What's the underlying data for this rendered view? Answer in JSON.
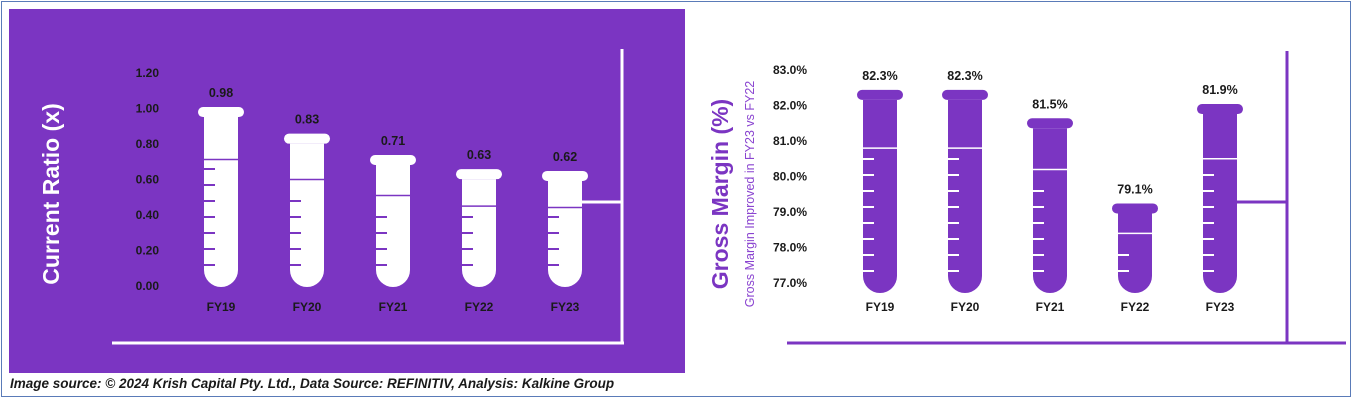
{
  "colors": {
    "purple": "#7b35c2",
    "white": "#ffffff",
    "text_dark": "#1a1a1a",
    "label_purple": "#8a44d0"
  },
  "chart_data": [
    {
      "type": "bar",
      "title": "",
      "ylabel": "Current Ratio (x)",
      "xlabel": "",
      "categories": [
        "FY19",
        "FY20",
        "FY21",
        "FY22",
        "FY23"
      ],
      "values": [
        0.98,
        0.83,
        0.71,
        0.63,
        0.62
      ],
      "value_labels": [
        "0.98",
        "0.83",
        "0.71",
        "0.63",
        "0.62"
      ],
      "ylim": [
        0,
        1.2
      ],
      "yticks": [
        "0.00",
        "0.20",
        "0.40",
        "0.60",
        "0.80",
        "1.00",
        "1.20"
      ]
    },
    {
      "type": "bar",
      "title": "",
      "ylabel": "Gross Margin (%)",
      "subtitle": "Gross Margin Improved in FY23 vs FY22",
      "xlabel": "",
      "categories": [
        "FY19",
        "FY20",
        "FY21",
        "FY22",
        "FY23"
      ],
      "values": [
        82.3,
        82.3,
        81.5,
        79.1,
        81.9
      ],
      "value_labels": [
        "82.3%",
        "82.3%",
        "81.5%",
        "79.1%",
        "81.9%"
      ],
      "ylim": [
        77,
        83
      ],
      "yticks": [
        "77.0%",
        "78.0%",
        "79.0%",
        "80.0%",
        "81.0%",
        "82.0%",
        "83.0%"
      ]
    }
  ],
  "footer": "Image source: © 2024 Krish Capital Pty. Ltd., Data Source: REFINITIV, Analysis: Kalkine Group"
}
